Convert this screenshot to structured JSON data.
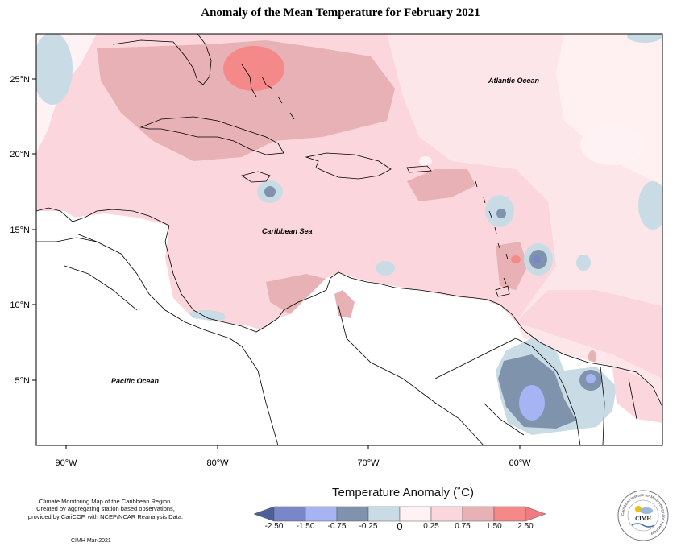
{
  "title": "Anomaly of the Mean Temperature for February 2021",
  "labels": {
    "atlantic": "Atlantic Ocean",
    "caribbean": "Caribbean Sea",
    "pacific": "Pacific Ocean"
  },
  "axes": {
    "lat_ticks": [
      "25°N",
      "20°N",
      "15°N",
      "10°N",
      "5°N"
    ],
    "lon_ticks": [
      "90°W",
      "80°W",
      "70°W",
      "60°W"
    ]
  },
  "notes": {
    "line1": "Climate Monitoring Map of the Caribbean Region.",
    "line2": "Created by aggregating station based observations,",
    "line3": "provided by CariCOF, with NCEP/NCAR Reanalysis Data.",
    "credit": "CIMH Mar-2021"
  },
  "legend": {
    "title": "Temperature Anomaly (˚C)",
    "ticks": [
      "-2.50",
      "-1.50",
      "-0.75",
      "-0.25",
      "0",
      "0.25",
      "0.75",
      "1.50",
      "2.50"
    ],
    "colors": [
      "#4f5f97",
      "#7b86c8",
      "#a6b4f4",
      "#7f93ac",
      "#c9dce6",
      "#fff2f4",
      "#fbd6dc",
      "#e8b1b5",
      "#f58989",
      "#f07a80"
    ]
  },
  "logo": {
    "text": "CIMH",
    "ring_text": "Caribbean Institute for Meteorology and Hydrology"
  }
}
